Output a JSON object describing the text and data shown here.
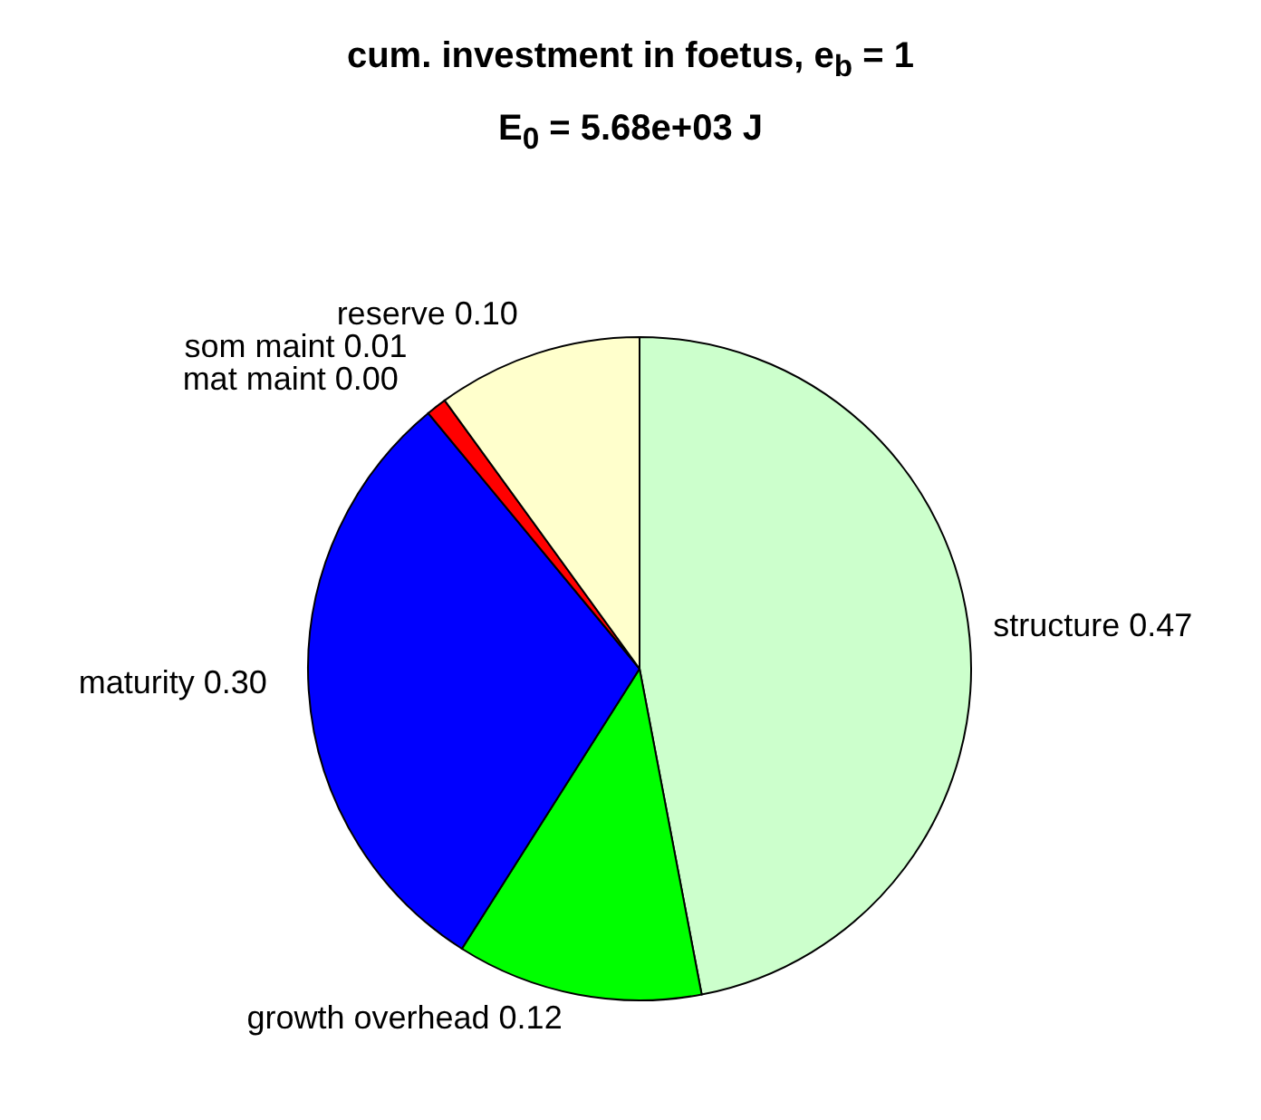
{
  "chart_data": {
    "type": "pie",
    "title": "cum. investment in foetus, e$_{b}$ = 1",
    "subtitle": "E$_{0}$ = 5.68e+03 J",
    "categories": [
      "structure",
      "growth overhead",
      "maturity",
      "mat maint",
      "som maint",
      "reserve"
    ],
    "values": [
      0.47,
      0.12,
      0.3,
      0.0,
      0.01,
      0.1
    ],
    "value_labels": [
      "0.47",
      "0.12",
      "0.30",
      "0.00",
      "0.01",
      "0.10"
    ],
    "colors": [
      "#ccffcc",
      "#00ff00",
      "#0000ff",
      "#cc00cc",
      "#ff0000",
      "#ffffcc"
    ],
    "legend": false
  }
}
